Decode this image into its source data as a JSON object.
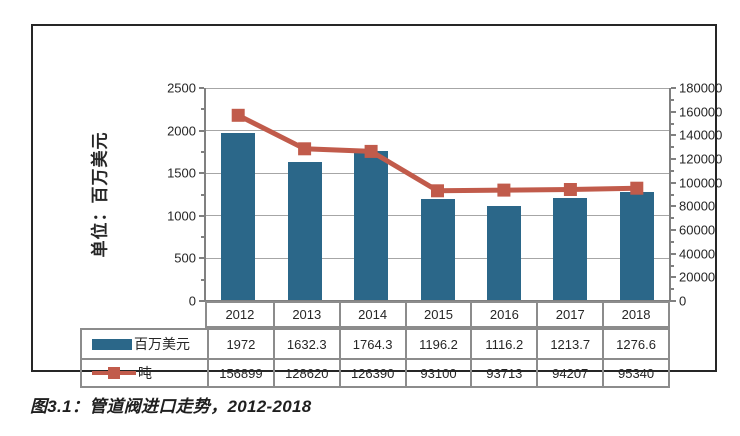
{
  "figure": {
    "caption": "图3.1：管道阀进口走势，2012-2018"
  },
  "chart_data": {
    "type": "bar",
    "subtype": "combo-bar-line",
    "categories": [
      "2012",
      "2013",
      "2014",
      "2015",
      "2016",
      "2017",
      "2018"
    ],
    "series": [
      {
        "name": "百万美元",
        "type": "bar",
        "axis": "left",
        "color": "#2B6789",
        "values": [
          1972,
          1632.3,
          1764.3,
          1196.2,
          1116.2,
          1213.7,
          1276.6
        ]
      },
      {
        "name": "吨",
        "type": "line",
        "axis": "right",
        "color": "#C15B4B",
        "values": [
          156899,
          128620,
          126390,
          93100,
          93713,
          94207,
          95340
        ]
      }
    ],
    "left_axis": {
      "title": "单位：百万美元",
      "min": 0,
      "max": 2500,
      "step": 500,
      "tick_labels": [
        "0",
        "500",
        "1000",
        "1500",
        "2000",
        "2500"
      ]
    },
    "right_axis": {
      "min": 0,
      "max": 180000,
      "step": 20000,
      "tick_labels": [
        "0",
        "20000",
        "40000",
        "60000",
        "80000",
        "100000",
        "120000",
        "140000",
        "160000",
        "180000"
      ]
    },
    "grid": "horizontal-only",
    "legend_position": "table-left-column",
    "colors": {
      "bar": "#2B6789",
      "line": "#C15B4B",
      "gridline": "#A6A6A6",
      "axis_line": "#808080",
      "table_border": "#8C8C8C",
      "text": "#262626"
    }
  }
}
